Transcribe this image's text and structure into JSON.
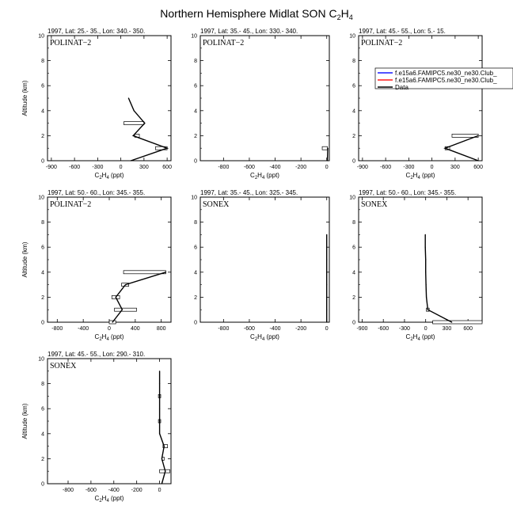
{
  "figure": {
    "title": "Northern Hemisphere Midlat SON C",
    "title_sub": "2",
    "title_mid": "H",
    "title_sub2": "4"
  },
  "legend": {
    "entries": [
      {
        "label": "f.e15a6.FAMIPC5.ne30_ne30.Club_",
        "color": "#1a1aff"
      },
      {
        "label": "f.e15a6.FAMIPC5.ne30_ne30.Club_",
        "color": "#ff1a1a"
      },
      {
        "label": "Data",
        "color": "#000000"
      }
    ]
  },
  "chart_data": [
    {
      "type": "line",
      "header": "1997, Lat: 25.- 35., Lon: 340.- 350.",
      "campaign": "POLINAT−2",
      "xlabel": "C2H4 (ppt)",
      "ylabel": "Altitude (km)",
      "xlim": [
        -950,
        650
      ],
      "xticks": [
        -900,
        -600,
        -300,
        0,
        300,
        600
      ],
      "ylim": [
        0,
        10
      ],
      "yticks": [
        0,
        2,
        4,
        6,
        8,
        10
      ],
      "profile": [
        [
          130,
          0
        ],
        [
          600,
          1
        ],
        [
          160,
          2
        ],
        [
          310,
          3
        ],
        [
          170,
          4
        ],
        [
          100,
          5
        ]
      ],
      "boxes": [
        [
          450,
          600,
          1
        ],
        [
          180,
          240,
          2
        ],
        [
          40,
          300,
          3
        ]
      ]
    },
    {
      "type": "line",
      "header": "1997, Lat: 35.- 45., Lon: 330.- 340.",
      "campaign": "POLINAT−2",
      "xlabel": "C2H4 (ppt)",
      "ylabel": "",
      "xlim": [
        -980,
        20
      ],
      "xticks": [
        -800,
        -600,
        -400,
        -200,
        0
      ],
      "ylim": [
        0,
        10
      ],
      "yticks": [
        0,
        2,
        4,
        6,
        8,
        10
      ],
      "profile": [
        [
          5,
          0
        ],
        [
          8,
          1
        ]
      ],
      "boxes": [
        [
          -35,
          5,
          1
        ]
      ]
    },
    {
      "type": "line",
      "header": "1997, Lat: 45.- 55., Lon: 5.- 15.",
      "campaign": "POLINAT−2",
      "xlabel": "C2H4 (ppt)",
      "ylabel": "",
      "xlim": [
        -950,
        650
      ],
      "xticks": [
        -900,
        -600,
        -300,
        0,
        300,
        600
      ],
      "ylim": [
        0,
        10
      ],
      "yticks": [
        0,
        2,
        4,
        6,
        8,
        10
      ],
      "profile": [
        [
          600,
          0
        ],
        [
          170,
          1
        ],
        [
          600,
          2
        ]
      ],
      "boxes": [
        [
          260,
          600,
          2
        ],
        [
          170,
          230,
          1
        ]
      ]
    },
    {
      "type": "line",
      "header": "1997, Lat: 50.- 60., Lon: 345.- 355.",
      "campaign": "POLINAT−2",
      "xlabel": "C2H4 (ppt)",
      "ylabel": "Altitude (km)",
      "xlim": [
        -950,
        950
      ],
      "xticks": [
        -800,
        -400,
        0,
        400,
        800
      ],
      "ylim": [
        0,
        10
      ],
      "yticks": [
        0,
        2,
        4,
        6,
        8,
        10
      ],
      "profile": [
        [
          50,
          0
        ],
        [
          200,
          1
        ],
        [
          100,
          2
        ],
        [
          250,
          3
        ],
        [
          870,
          4
        ]
      ],
      "boxes": [
        [
          0,
          100,
          0
        ],
        [
          80,
          420,
          1
        ],
        [
          40,
          160,
          2
        ],
        [
          190,
          300,
          3
        ],
        [
          220,
          870,
          4
        ]
      ]
    },
    {
      "type": "line",
      "header": "1997, Lat: 35.- 45., Lon: 325.- 345.",
      "campaign": "SONEX",
      "xlabel": "C2H4 (ppt)",
      "ylabel": "",
      "xlim": [
        -980,
        20
      ],
      "xticks": [
        -800,
        -600,
        -400,
        -200,
        0
      ],
      "ylim": [
        0,
        10
      ],
      "yticks": [
        0,
        2,
        4,
        6,
        8,
        10
      ],
      "profile": [
        [
          0,
          0
        ],
        [
          0,
          1
        ],
        [
          0,
          2
        ],
        [
          0,
          3
        ],
        [
          0,
          4
        ],
        [
          0,
          5
        ],
        [
          0,
          6
        ],
        [
          0,
          7
        ]
      ],
      "boxes": []
    },
    {
      "type": "line",
      "header": "1997, Lat: 50.- 60., Lon: 345.- 355.",
      "campaign": "SONEX",
      "xlabel": "C2H4 (ppt)",
      "ylabel": "",
      "xlim": [
        -950,
        800
      ],
      "xticks": [
        -900,
        -600,
        -300,
        0,
        300,
        600
      ],
      "ylim": [
        0,
        10
      ],
      "yticks": [
        0,
        2,
        4,
        6,
        8,
        10
      ],
      "profile": [
        [
          370,
          0
        ],
        [
          30,
          1
        ],
        [
          10,
          2
        ],
        [
          5,
          3
        ],
        [
          0,
          4
        ],
        [
          0,
          5
        ],
        [
          -5,
          6
        ],
        [
          -5,
          7
        ]
      ],
      "boxes": [
        [
          100,
          800,
          0
        ],
        [
          10,
          50,
          1
        ]
      ]
    },
    {
      "type": "line",
      "header": "1997, Lat: 45.- 55., Lon: 290.- 310.",
      "campaign": "SONEX",
      "xlabel": "C2H4 (ppt)",
      "ylabel": "Altitude (km)",
      "xlim": [
        -980,
        100
      ],
      "xticks": [
        -800,
        -600,
        -400,
        -200,
        0
      ],
      "ylim": [
        0,
        10
      ],
      "yticks": [
        0,
        2,
        4,
        6,
        8,
        10
      ],
      "profile": [
        [
          20,
          0
        ],
        [
          50,
          1
        ],
        [
          20,
          2
        ],
        [
          40,
          3
        ],
        [
          0,
          4
        ],
        [
          0,
          5
        ],
        [
          0,
          6
        ],
        [
          0,
          7
        ],
        [
          0,
          8
        ],
        [
          0,
          9
        ]
      ],
      "boxes": [
        [
          0,
          90,
          1
        ],
        [
          20,
          40,
          2
        ],
        [
          30,
          70,
          3
        ],
        [
          -10,
          10,
          5
        ],
        [
          -10,
          10,
          7
        ]
      ]
    }
  ]
}
